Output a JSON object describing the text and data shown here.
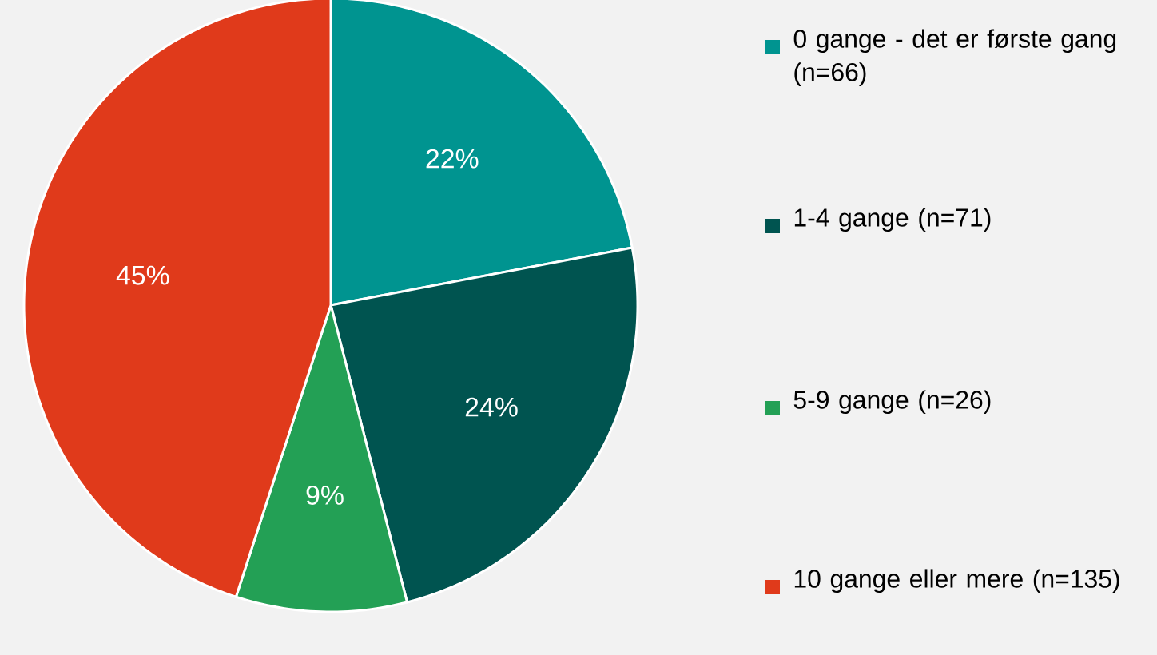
{
  "chart_data": {
    "type": "pie",
    "categories": [
      "0 gange - det er første gang (n=66)",
      "1-4 gange (n=71)",
      "5-9 gange (n=26)",
      "10 gange eller mere (n=135)"
    ],
    "values": [
      22,
      24,
      9,
      45
    ],
    "colors": [
      "#009490",
      "#005450",
      "#23a055",
      "#e03a1b"
    ],
    "value_labels": [
      "22%",
      "24%",
      "9%",
      "45%"
    ],
    "legend": "right"
  }
}
